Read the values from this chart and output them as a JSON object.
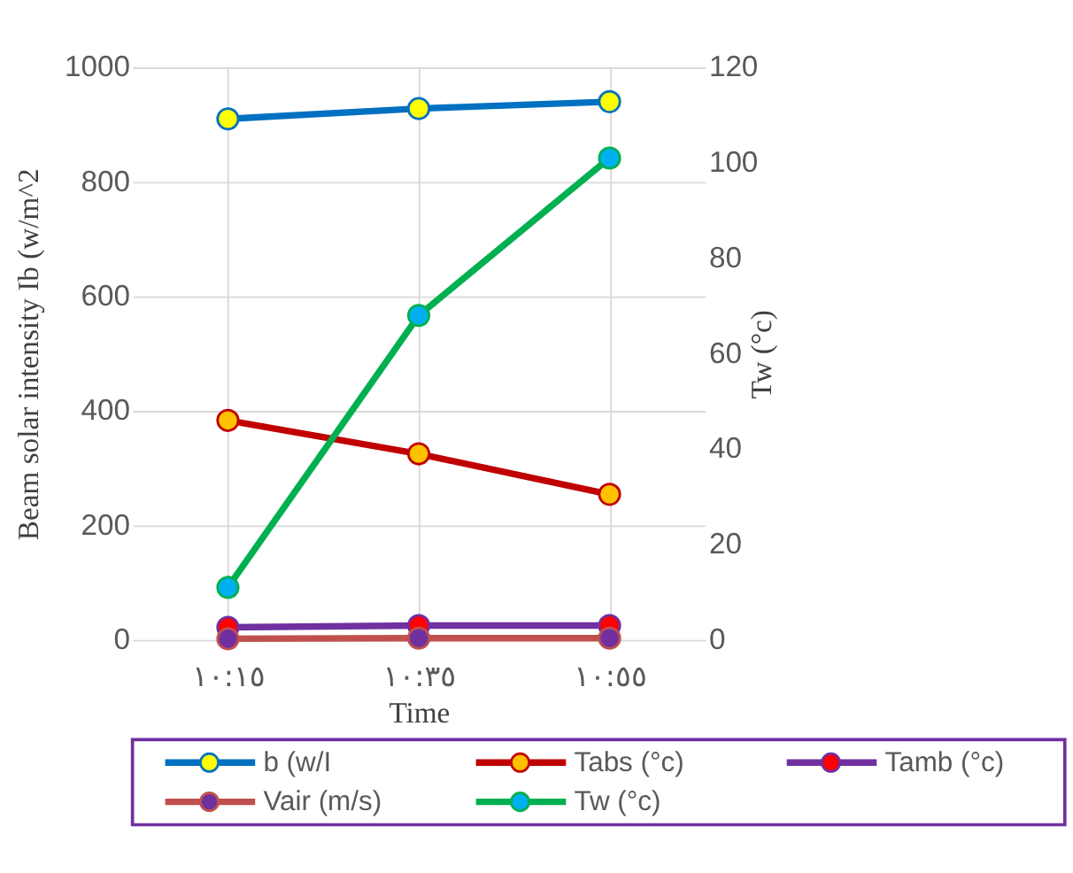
{
  "chart_data": {
    "type": "line",
    "xlabel": "Time",
    "ylabel": "Beam solar intensity Ib  (w/m^2",
    "y2label": "Tw (°c)",
    "categories": [
      "١٠:١٥",
      "١٠:٣٥",
      "١٠:٥٥"
    ],
    "series": [
      {
        "name": "b (w/I",
        "color": "#0070c0",
        "values": [
          910,
          928,
          940
        ]
      },
      {
        "name": "Tabs (°c)",
        "color": "#c00000",
        "values": [
          46,
          39,
          30.5
        ],
        "axis": "y2"
      },
      {
        "name": "Tamb (°c)",
        "color": "#7030a0",
        "values": [
          22,
          25,
          25
        ]
      },
      {
        "name": "Vair (m/s)",
        "color": "#c0504d",
        "values": [
          2,
          3,
          3
        ]
      },
      {
        "name": "Tw (°c)",
        "color": "#00b050",
        "values": [
          11,
          68,
          101
        ],
        "axis": "y2"
      }
    ],
    "ylim": [
      0,
      1000
    ],
    "yticks": [
      0,
      200,
      400,
      600,
      800,
      1000
    ],
    "y2lim": [
      0,
      120
    ],
    "y2ticks": [
      0,
      20,
      40,
      60,
      80,
      100,
      120
    ],
    "grid": true,
    "legend": "bottom",
    "marker": "circle",
    "line_style": "solid"
  }
}
